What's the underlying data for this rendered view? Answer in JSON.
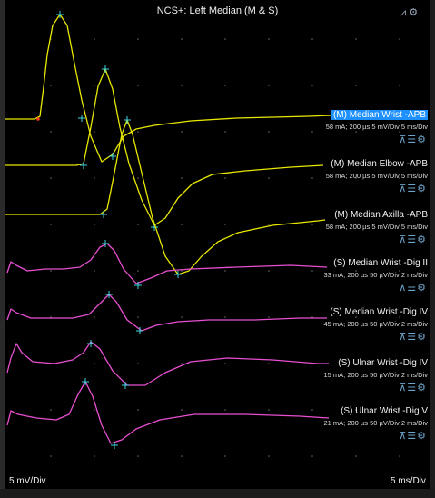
{
  "title": "NCS+: Left Median (M & S)",
  "top_icons": [
    "waveform-tool-icon",
    "settings-gear-icon"
  ],
  "scales": {
    "left": "5 mV/Div",
    "right": "5 ms/Div"
  },
  "colors": {
    "motor": "#e8e800",
    "sensory": "#e84fd0",
    "marker": "#3fd6e0",
    "onset": "#ff3b1a",
    "highlight": "#1e90ff"
  },
  "traces": [
    {
      "label": "(M) Median Wrist -APB",
      "settings": "58 mA; 200 µs 5 mV/Div  5 ms/Div",
      "type": "motor",
      "selected": true
    },
    {
      "label": "(M) Median Elbow -APB",
      "settings": "58 mA; 200 µs 5 mV/Div  5 ms/Div",
      "type": "motor",
      "selected": false
    },
    {
      "label": "(M) Median Axilla -APB",
      "settings": "58 mA; 200 µs 5 mV/Div  5 ms/Div",
      "type": "motor",
      "selected": false
    },
    {
      "label": "(S) Median Wrist -Dig II",
      "settings": "33 mA; 200 µs 50 µV/Div  2 ms/Div",
      "type": "sensory",
      "selected": false
    },
    {
      "label": "(S) Median Wrist -Dig IV",
      "settings": "45 mA; 200 µs 50 µV/Div  2 ms/Div",
      "type": "sensory",
      "selected": false
    },
    {
      "label": "(S) Ulnar Wrist -Dig IV",
      "settings": "15 mA; 200 µs 50 µV/Div  2 ms/Div",
      "type": "sensory",
      "selected": false
    },
    {
      "label": "(S) Ulnar Wrist -Dig V",
      "settings": "21 mA; 200 µs 50 µV/Div  2 ms/Div",
      "type": "sensory",
      "selected": false
    }
  ],
  "trace_tools": [
    "cursor-icon",
    "list-icon",
    "settings-gear-icon"
  ],
  "tool_glyphs": {
    "cursor": "⊼",
    "list": "☰",
    "gear": "⚙",
    "waveform": "⩘",
    "top_gear": "⚙"
  }
}
